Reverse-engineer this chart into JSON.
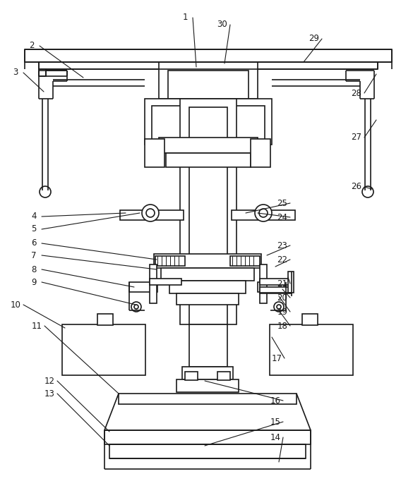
{
  "bg_color": "#ffffff",
  "line_color": "#1a1a1a",
  "lw": 1.2,
  "lw_thin": 0.8,
  "figsize": [
    5.85,
    6.99
  ],
  "dpi": 100
}
